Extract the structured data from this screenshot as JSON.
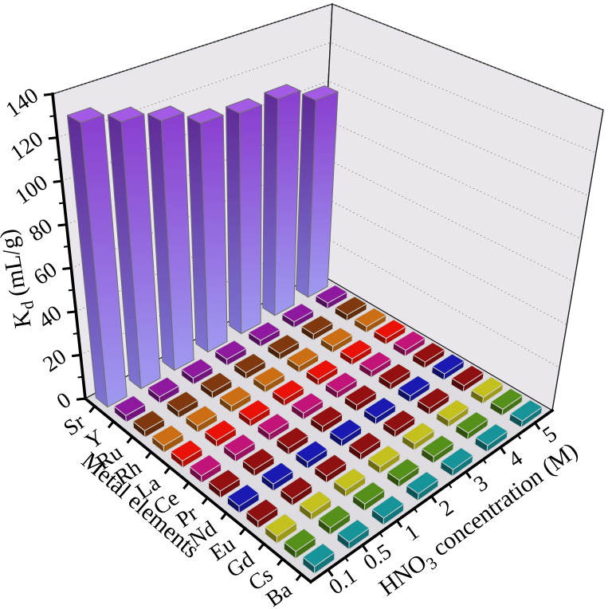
{
  "chart_data": {
    "type": "bar3d",
    "background": "#ffffff",
    "wall_color": "#e9e7ec",
    "floor_color": "#dedce0",
    "grid_color": "#8a8a8a",
    "axis_color": "#000000",
    "z_axis": {
      "title_parts": [
        {
          "t": "K"
        },
        {
          "t": "d",
          "sub": true
        },
        {
          "t": " (mL/g)"
        }
      ],
      "min": 0,
      "max": 140,
      "major_ticks": [
        0,
        20,
        40,
        60,
        80,
        100,
        120,
        140
      ],
      "minor_step": 10
    },
    "metal_axis": {
      "title_parts": [
        {
          "t": "Metal elements"
        }
      ],
      "categories": [
        "Sr",
        "Y",
        "Ru",
        "Rh",
        "La",
        "Ce",
        "Pr",
        "Nd",
        "Eu",
        "Gd",
        "Cs",
        "Ba"
      ]
    },
    "conc_axis": {
      "title_parts": [
        {
          "t": "HNO"
        },
        {
          "t": "3",
          "sub": true
        },
        {
          "t": " concentration (M)"
        }
      ],
      "categories": [
        "0.1",
        "0.5",
        "1",
        "2",
        "3",
        "4",
        "5"
      ]
    },
    "series": [
      {
        "element": "Sr",
        "color": "#a35ae4",
        "side_gradient": [
          "#8a3ecf",
          "#9f9af0"
        ],
        "dark_gradient": [
          "#5f2b97",
          "#7d74d2"
        ],
        "values": [
          130,
          124,
          118,
          110,
          108,
          108,
          100
        ]
      },
      {
        "element": "Y",
        "color": "#8e189e",
        "values": [
          3,
          3,
          3,
          3,
          3,
          3,
          3
        ]
      },
      {
        "element": "Ru",
        "color": "#80380e",
        "values": [
          3,
          3,
          3,
          3,
          3,
          3,
          3
        ]
      },
      {
        "element": "Rh",
        "color": "#cc6e14",
        "values": [
          3,
          3,
          3,
          3,
          3,
          3,
          3
        ]
      },
      {
        "element": "La",
        "color": "#ea1208",
        "values": [
          3,
          3,
          3,
          3,
          3,
          3,
          3
        ]
      },
      {
        "element": "Ce",
        "color": "#c21478",
        "values": [
          3,
          3,
          3,
          3,
          3,
          3,
          3
        ]
      },
      {
        "element": "Pr",
        "color": "#941010",
        "values": [
          3,
          3,
          3,
          3,
          3,
          3,
          3
        ]
      },
      {
        "element": "Nd",
        "color": "#1a1ab2",
        "values": [
          3,
          3,
          3,
          3,
          3,
          3,
          3
        ]
      },
      {
        "element": "Eu",
        "color": "#8e1010",
        "values": [
          3,
          3,
          3,
          3,
          3,
          3,
          3
        ]
      },
      {
        "element": "Gd",
        "color": "#c4c01e",
        "values": [
          3,
          3,
          3,
          3,
          3,
          3,
          3
        ]
      },
      {
        "element": "Cs",
        "color": "#55901a",
        "values": [
          3,
          3,
          3,
          3,
          3,
          3,
          3
        ]
      },
      {
        "element": "Ba",
        "color": "#16949a",
        "values": [
          3,
          3,
          3,
          3,
          3,
          3,
          3
        ]
      }
    ]
  }
}
